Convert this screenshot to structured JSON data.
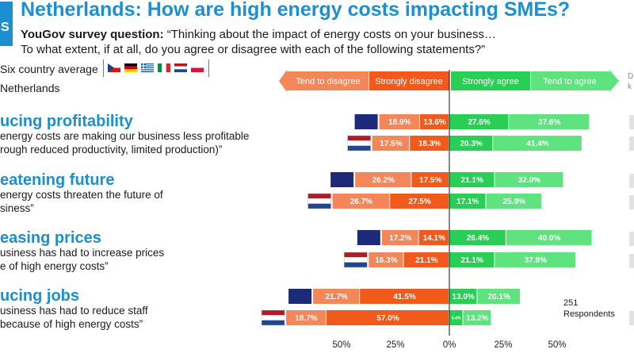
{
  "header": {
    "logo_text": "S",
    "title": "Netherlands: How are high energy costs impacting SMEs?",
    "question_prefix": "YouGov survey question:",
    "question_line1": " “Thinking about the impact of energy costs on your business…",
    "question_line2": "To what extent, if at all, do you agree or disagree with each of the following statements?”"
  },
  "legend": {
    "six_country_label": "Six country average",
    "netherlands_label": "Netherlands",
    "flags": [
      "czechia-flag",
      "germany-flag",
      "greece-flag",
      "italy-flag",
      "netherlands-flag",
      "poland-flag"
    ],
    "right_edge_label_1": "D",
    "right_edge_label_2": "k"
  },
  "statements": [
    {
      "title": "ucing profitability",
      "line1": "energy costs are making our business less profitable",
      "line2": "rough reduced productivity, limited production)”"
    },
    {
      "title": "eatening future",
      "line1": "energy costs threaten the future of",
      "line2": "siness”"
    },
    {
      "title": "easing prices",
      "line1": "usiness has had to increase prices",
      "line2": "e of high energy costs”"
    },
    {
      "title": "ucing jobs",
      "line1": "usiness has had to reduce staff",
      "line2": "because of high energy costs”"
    }
  ],
  "respondents": {
    "line1": "251",
    "line2": "Respondents"
  },
  "colors": {
    "tend_disagree": "#f4875a",
    "strongly_disagree": "#f25a1c",
    "strongly_agree": "#29cf55",
    "tend_agree": "#5ee37e",
    "dont_know": "#1d2a7a",
    "title_blue": "#1b8fd0"
  },
  "chart_data": {
    "type": "bar",
    "orientation": "horizontal-diverging",
    "categories": [
      "Reducing profitability - Six country average",
      "Reducing profitability - Netherlands",
      "Threatening future - Six country average",
      "Threatening future - Netherlands",
      "Increasing prices - Six country average",
      "Increasing prices - Netherlands",
      "Reducing jobs - Six country average",
      "Reducing jobs - Netherlands"
    ],
    "series": [
      {
        "name": "Tend to disagree",
        "values": [
          18.9,
          17.5,
          26.2,
          26.7,
          17.2,
          16.3,
          21.7,
          18.7
        ],
        "labels": [
          "18.9%",
          "17.5%",
          "26.2%",
          "26.7%",
          "17.2%",
          "16.3%",
          "21.7%",
          "18.7%"
        ]
      },
      {
        "name": "Strongly disagree",
        "values": [
          13.6,
          18.3,
          17.5,
          27.5,
          14.1,
          21.1,
          41.5,
          57.0
        ],
        "labels": [
          "13.6%",
          "18.3%",
          "17.5%",
          "27.5%",
          "14.1%",
          "21.1%",
          "41.5%",
          "57.0%"
        ]
      },
      {
        "name": "Strongly agree",
        "values": [
          27.6,
          20.3,
          21.1,
          17.1,
          26.4,
          21.1,
          13.0,
          6.4
        ],
        "labels": [
          "27.6%",
          "20.3%",
          "21.1%",
          "17.1%",
          "26.4%",
          "21.1%",
          "13.0%",
          "6.4%"
        ]
      },
      {
        "name": "Tend to agree",
        "values": [
          37.6,
          41.4,
          32.0,
          25.9,
          40.0,
          37.8,
          20.1,
          13.2
        ],
        "labels": [
          "37.6%",
          "41.4%",
          "32.0%",
          "25.9%",
          "40.0%",
          "37.8%",
          "20.1%",
          "13.2%"
        ]
      }
    ],
    "row_marker": [
      "avg",
      "nl",
      "avg",
      "nl",
      "avg",
      "nl",
      "avg",
      "nl"
    ],
    "xlim": [
      -57,
      75
    ],
    "xticks": [
      -50,
      -25,
      0,
      25,
      50
    ],
    "xtick_labels": [
      "50%",
      "25%",
      "0%",
      "25%",
      "50%"
    ],
    "legend_placement": "top",
    "grid": false
  }
}
